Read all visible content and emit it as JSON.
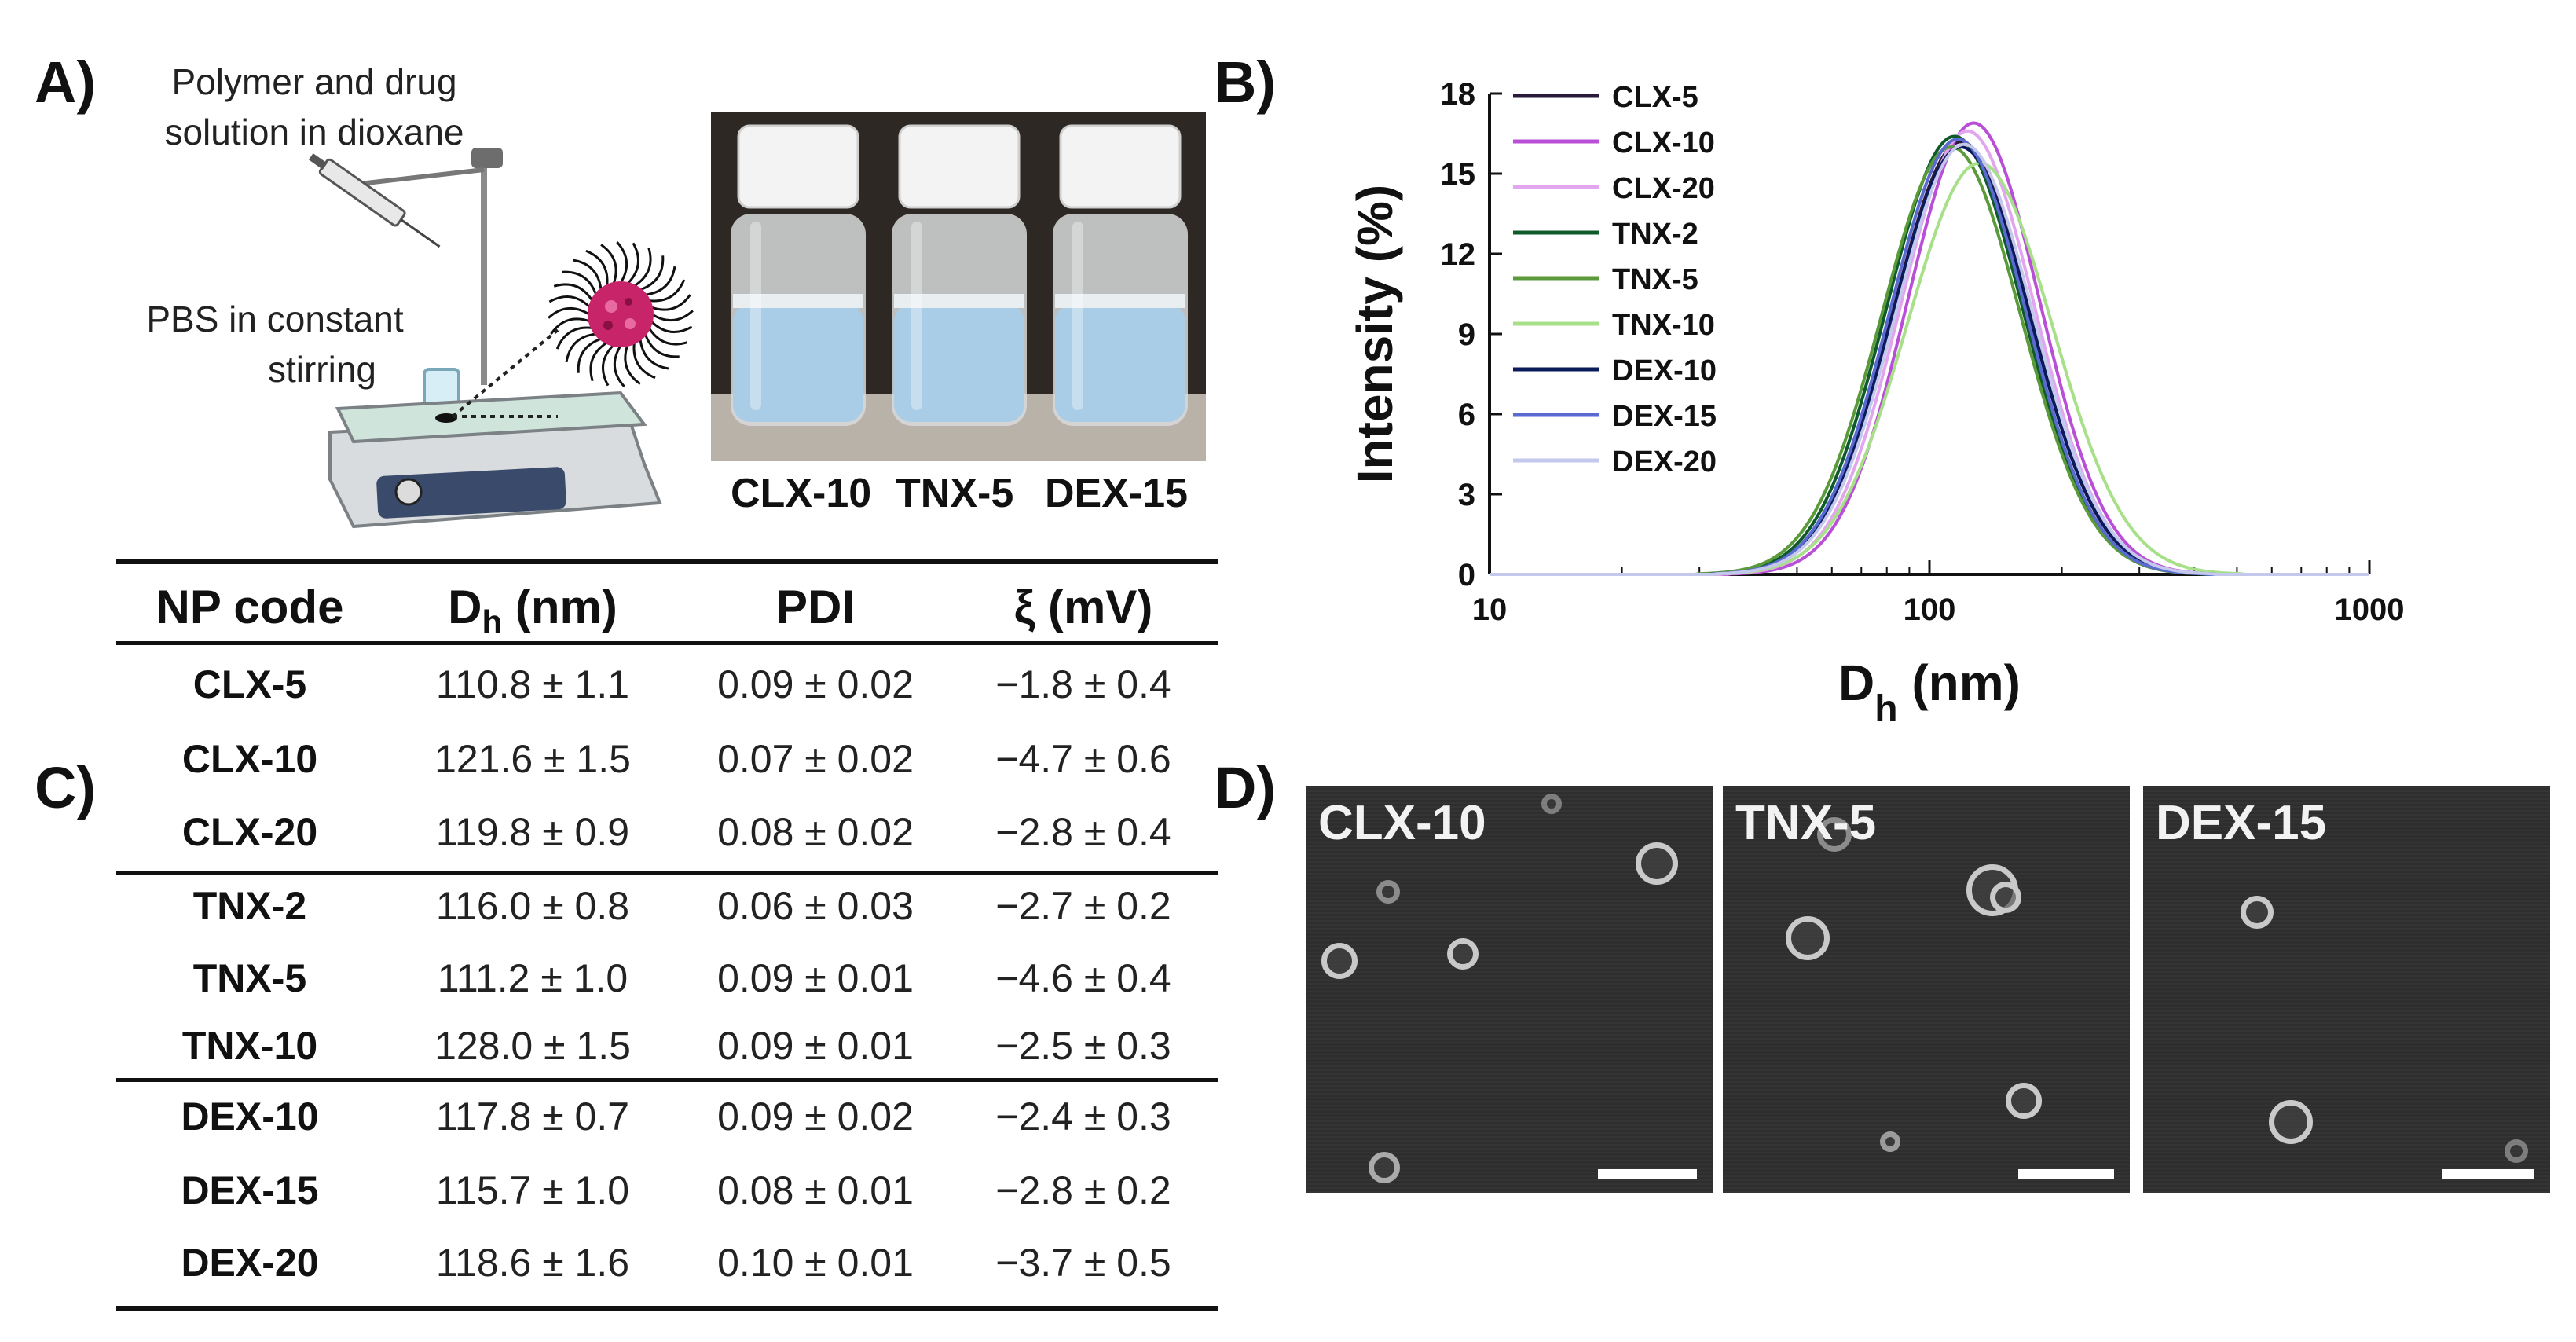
{
  "panels": {
    "a": "A)",
    "b": "B)",
    "c": "C)",
    "d": "D)"
  },
  "panel_a": {
    "annotation_top_line1": "Polymer and drug",
    "annotation_top_line2": "solution in dioxane",
    "annotation_bottom_line1": "PBS in constant",
    "annotation_bottom_line2": "stirring",
    "vial_labels": [
      "CLX-10",
      "TNX-5",
      "DEX-15"
    ]
  },
  "chart_data": {
    "type": "line",
    "title": "",
    "xlabel": "D",
    "xlabel_sub": "h",
    "xlabel_unit": " (nm)",
    "ylabel": "Intensity (%)",
    "xscale": "log",
    "xlim": [
      10,
      1000
    ],
    "ylim": [
      0,
      18
    ],
    "xticks": [
      "10",
      "100",
      "1000"
    ],
    "yticks": [
      "0",
      "3",
      "6",
      "9",
      "12",
      "15",
      "18"
    ],
    "legend_position": "top-left",
    "series": [
      {
        "name": "CLX-5",
        "color": "#2b1a3a",
        "peak_x": 118,
        "peak_y": 16.2,
        "width": 0.155
      },
      {
        "name": "CLX-10",
        "color": "#b84fd6",
        "peak_x": 126,
        "peak_y": 16.9,
        "width": 0.15
      },
      {
        "name": "CLX-20",
        "color": "#e2a6ef",
        "peak_x": 122,
        "peak_y": 16.6,
        "width": 0.152
      },
      {
        "name": "TNX-2",
        "color": "#0e5a2a",
        "peak_x": 114,
        "peak_y": 16.4,
        "width": 0.155
      },
      {
        "name": "TNX-5",
        "color": "#5a9a3a",
        "peak_x": 112,
        "peak_y": 16.0,
        "width": 0.158
      },
      {
        "name": "TNX-10",
        "color": "#a8e08a",
        "peak_x": 130,
        "peak_y": 15.4,
        "width": 0.165
      },
      {
        "name": "DEX-10",
        "color": "#0a1a5a",
        "peak_x": 118,
        "peak_y": 16.0,
        "width": 0.156
      },
      {
        "name": "DEX-15",
        "color": "#5a6ad0",
        "peak_x": 116,
        "peak_y": 16.3,
        "width": 0.154
      },
      {
        "name": "DEX-20",
        "color": "#c4c8ec",
        "peak_x": 120,
        "peak_y": 16.1,
        "width": 0.156
      }
    ]
  },
  "table": {
    "headers": {
      "code": "NP code",
      "dh_main": "D",
      "dh_sub": "h",
      "dh_unit": " (nm)",
      "pdi": "PDI",
      "zeta": "ξ (mV)"
    },
    "rows": [
      {
        "code": "CLX-5",
        "dh": "110.8 ± 1.1",
        "pdi": "0.09 ± 0.02",
        "zeta": "−1.8 ± 0.4"
      },
      {
        "code": "CLX-10",
        "dh": "121.6 ± 1.5",
        "pdi": "0.07 ± 0.02",
        "zeta": "−4.7 ± 0.6"
      },
      {
        "code": "CLX-20",
        "dh": "119.8 ± 0.9",
        "pdi": "0.08 ± 0.02",
        "zeta": "−2.8 ± 0.4"
      },
      {
        "code": "TNX-2",
        "dh": "116.0 ± 0.8",
        "pdi": "0.06 ± 0.03",
        "zeta": "−2.7 ± 0.2"
      },
      {
        "code": "TNX-5",
        "dh": "111.2 ± 1.0",
        "pdi": "0.09 ± 0.01",
        "zeta": "−4.6 ± 0.4"
      },
      {
        "code": "TNX-10",
        "dh": "128.0 ± 1.5",
        "pdi": "0.09 ± 0.01",
        "zeta": "−2.5 ± 0.3"
      },
      {
        "code": "DEX-10",
        "dh": "117.8 ± 0.7",
        "pdi": "0.09 ± 0.02",
        "zeta": "−2.4 ± 0.3"
      },
      {
        "code": "DEX-15",
        "dh": "115.7 ± 1.0",
        "pdi": "0.08 ± 0.01",
        "zeta": "−2.8 ± 0.2"
      },
      {
        "code": "DEX-20",
        "dh": "118.6 ± 1.6",
        "pdi": "0.10 ± 0.01",
        "zeta": "−3.7 ± 0.5"
      }
    ]
  },
  "panel_d": {
    "labels": [
      "CLX-10",
      "TNX-5",
      "DEX-15"
    ]
  }
}
